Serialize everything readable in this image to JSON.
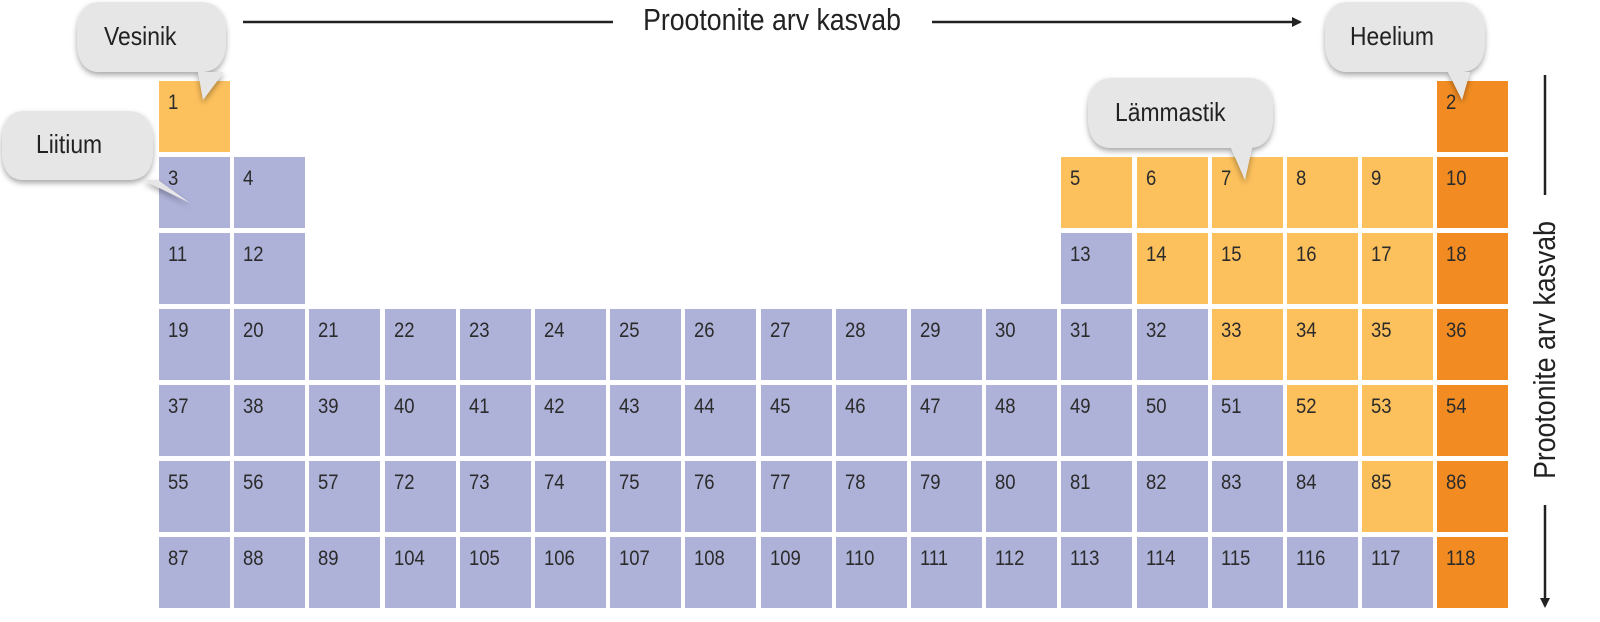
{
  "horizontal_arrow_label": "Prootonite arv kasvab",
  "vertical_arrow_label": "Prootonite arv kasvab",
  "callouts": {
    "hydrogen": "Vesinik",
    "lithium": "Liitium",
    "nitrogen": "Lämmastik",
    "helium": "Heelium"
  },
  "colors": {
    "metal": "#aeb1d8",
    "nonmetal": "#fcc05c",
    "noble_gas": "#f28c22",
    "bubble": "#e6e6e6",
    "grid_gap": "#ffffff"
  },
  "rows": [
    [
      {
        "n": "1",
        "col": 0,
        "cat": "nonmetal"
      },
      {
        "n": "2",
        "col": 17,
        "cat": "noble_gas"
      }
    ],
    [
      {
        "n": "3",
        "col": 0,
        "cat": "metal"
      },
      {
        "n": "4",
        "col": 1,
        "cat": "metal"
      },
      {
        "n": "5",
        "col": 12,
        "cat": "nonmetal"
      },
      {
        "n": "6",
        "col": 13,
        "cat": "nonmetal"
      },
      {
        "n": "7",
        "col": 14,
        "cat": "nonmetal"
      },
      {
        "n": "8",
        "col": 15,
        "cat": "nonmetal"
      },
      {
        "n": "9",
        "col": 16,
        "cat": "nonmetal"
      },
      {
        "n": "10",
        "col": 17,
        "cat": "noble_gas"
      }
    ],
    [
      {
        "n": "11",
        "col": 0,
        "cat": "metal"
      },
      {
        "n": "12",
        "col": 1,
        "cat": "metal"
      },
      {
        "n": "13",
        "col": 12,
        "cat": "metal"
      },
      {
        "n": "14",
        "col": 13,
        "cat": "nonmetal"
      },
      {
        "n": "15",
        "col": 14,
        "cat": "nonmetal"
      },
      {
        "n": "16",
        "col": 15,
        "cat": "nonmetal"
      },
      {
        "n": "17",
        "col": 16,
        "cat": "nonmetal"
      },
      {
        "n": "18",
        "col": 17,
        "cat": "noble_gas"
      }
    ],
    [
      {
        "n": "19",
        "col": 0,
        "cat": "metal"
      },
      {
        "n": "20",
        "col": 1,
        "cat": "metal"
      },
      {
        "n": "21",
        "col": 2,
        "cat": "metal"
      },
      {
        "n": "22",
        "col": 3,
        "cat": "metal"
      },
      {
        "n": "23",
        "col": 4,
        "cat": "metal"
      },
      {
        "n": "24",
        "col": 5,
        "cat": "metal"
      },
      {
        "n": "25",
        "col": 6,
        "cat": "metal"
      },
      {
        "n": "26",
        "col": 7,
        "cat": "metal"
      },
      {
        "n": "27",
        "col": 8,
        "cat": "metal"
      },
      {
        "n": "28",
        "col": 9,
        "cat": "metal"
      },
      {
        "n": "29",
        "col": 10,
        "cat": "metal"
      },
      {
        "n": "30",
        "col": 11,
        "cat": "metal"
      },
      {
        "n": "31",
        "col": 12,
        "cat": "metal"
      },
      {
        "n": "32",
        "col": 13,
        "cat": "metal"
      },
      {
        "n": "33",
        "col": 14,
        "cat": "nonmetal"
      },
      {
        "n": "34",
        "col": 15,
        "cat": "nonmetal"
      },
      {
        "n": "35",
        "col": 16,
        "cat": "nonmetal"
      },
      {
        "n": "36",
        "col": 17,
        "cat": "noble_gas"
      }
    ],
    [
      {
        "n": "37",
        "col": 0,
        "cat": "metal"
      },
      {
        "n": "38",
        "col": 1,
        "cat": "metal"
      },
      {
        "n": "39",
        "col": 2,
        "cat": "metal"
      },
      {
        "n": "40",
        "col": 3,
        "cat": "metal"
      },
      {
        "n": "41",
        "col": 4,
        "cat": "metal"
      },
      {
        "n": "42",
        "col": 5,
        "cat": "metal"
      },
      {
        "n": "43",
        "col": 6,
        "cat": "metal"
      },
      {
        "n": "44",
        "col": 7,
        "cat": "metal"
      },
      {
        "n": "45",
        "col": 8,
        "cat": "metal"
      },
      {
        "n": "46",
        "col": 9,
        "cat": "metal"
      },
      {
        "n": "47",
        "col": 10,
        "cat": "metal"
      },
      {
        "n": "48",
        "col": 11,
        "cat": "metal"
      },
      {
        "n": "49",
        "col": 12,
        "cat": "metal"
      },
      {
        "n": "50",
        "col": 13,
        "cat": "metal"
      },
      {
        "n": "51",
        "col": 14,
        "cat": "metal"
      },
      {
        "n": "52",
        "col": 15,
        "cat": "nonmetal"
      },
      {
        "n": "53",
        "col": 16,
        "cat": "nonmetal"
      },
      {
        "n": "54",
        "col": 17,
        "cat": "noble_gas"
      }
    ],
    [
      {
        "n": "55",
        "col": 0,
        "cat": "metal"
      },
      {
        "n": "56",
        "col": 1,
        "cat": "metal"
      },
      {
        "n": "57",
        "col": 2,
        "cat": "metal"
      },
      {
        "n": "72",
        "col": 3,
        "cat": "metal"
      },
      {
        "n": "73",
        "col": 4,
        "cat": "metal"
      },
      {
        "n": "74",
        "col": 5,
        "cat": "metal"
      },
      {
        "n": "75",
        "col": 6,
        "cat": "metal"
      },
      {
        "n": "76",
        "col": 7,
        "cat": "metal"
      },
      {
        "n": "77",
        "col": 8,
        "cat": "metal"
      },
      {
        "n": "78",
        "col": 9,
        "cat": "metal"
      },
      {
        "n": "79",
        "col": 10,
        "cat": "metal"
      },
      {
        "n": "80",
        "col": 11,
        "cat": "metal"
      },
      {
        "n": "81",
        "col": 12,
        "cat": "metal"
      },
      {
        "n": "82",
        "col": 13,
        "cat": "metal"
      },
      {
        "n": "83",
        "col": 14,
        "cat": "metal"
      },
      {
        "n": "84",
        "col": 15,
        "cat": "metal"
      },
      {
        "n": "85",
        "col": 16,
        "cat": "nonmetal"
      },
      {
        "n": "86",
        "col": 17,
        "cat": "noble_gas"
      }
    ],
    [
      {
        "n": "87",
        "col": 0,
        "cat": "metal"
      },
      {
        "n": "88",
        "col": 1,
        "cat": "metal"
      },
      {
        "n": "89",
        "col": 2,
        "cat": "metal"
      },
      {
        "n": "104",
        "col": 3,
        "cat": "metal"
      },
      {
        "n": "105",
        "col": 4,
        "cat": "metal"
      },
      {
        "n": "106",
        "col": 5,
        "cat": "metal"
      },
      {
        "n": "107",
        "col": 6,
        "cat": "metal"
      },
      {
        "n": "108",
        "col": 7,
        "cat": "metal"
      },
      {
        "n": "109",
        "col": 8,
        "cat": "metal"
      },
      {
        "n": "110",
        "col": 9,
        "cat": "metal"
      },
      {
        "n": "111",
        "col": 10,
        "cat": "metal"
      },
      {
        "n": "112",
        "col": 11,
        "cat": "metal"
      },
      {
        "n": "113",
        "col": 12,
        "cat": "metal"
      },
      {
        "n": "114",
        "col": 13,
        "cat": "metal"
      },
      {
        "n": "115",
        "col": 14,
        "cat": "metal"
      },
      {
        "n": "116",
        "col": 15,
        "cat": "metal"
      },
      {
        "n": "117",
        "col": 16,
        "cat": "metal"
      },
      {
        "n": "118",
        "col": 17,
        "cat": "noble_gas"
      }
    ]
  ]
}
